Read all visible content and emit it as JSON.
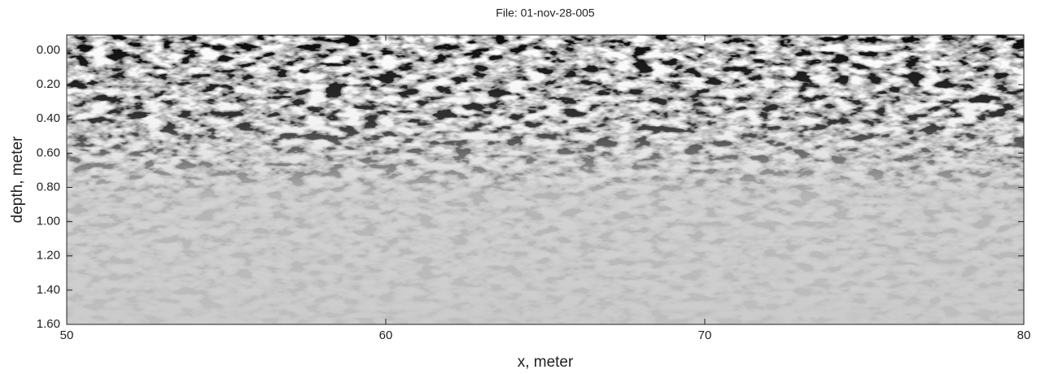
{
  "chart_data": {
    "type": "radargram",
    "title": "File: 01-nov-28-005",
    "x_label": "x, meter",
    "y_label": "depth, meter",
    "xlim": [
      50,
      80
    ],
    "xticks": [
      50,
      60,
      70,
      80
    ],
    "ylim": [
      1.6,
      -0.09
    ],
    "yticks": [
      {
        "value": 0,
        "label": "0.00"
      },
      {
        "value": 0.2,
        "label": "0.20"
      },
      {
        "value": 0.4,
        "label": "0.40"
      },
      {
        "value": 0.6,
        "label": "0.60"
      },
      {
        "value": 0.8,
        "label": "0.80"
      },
      {
        "value": 1.0,
        "label": "1.00"
      },
      {
        "value": 1.2,
        "label": "1.20"
      },
      {
        "value": 1.4,
        "label": "1.40"
      },
      {
        "value": 1.6,
        "label": "1.60"
      }
    ]
  }
}
